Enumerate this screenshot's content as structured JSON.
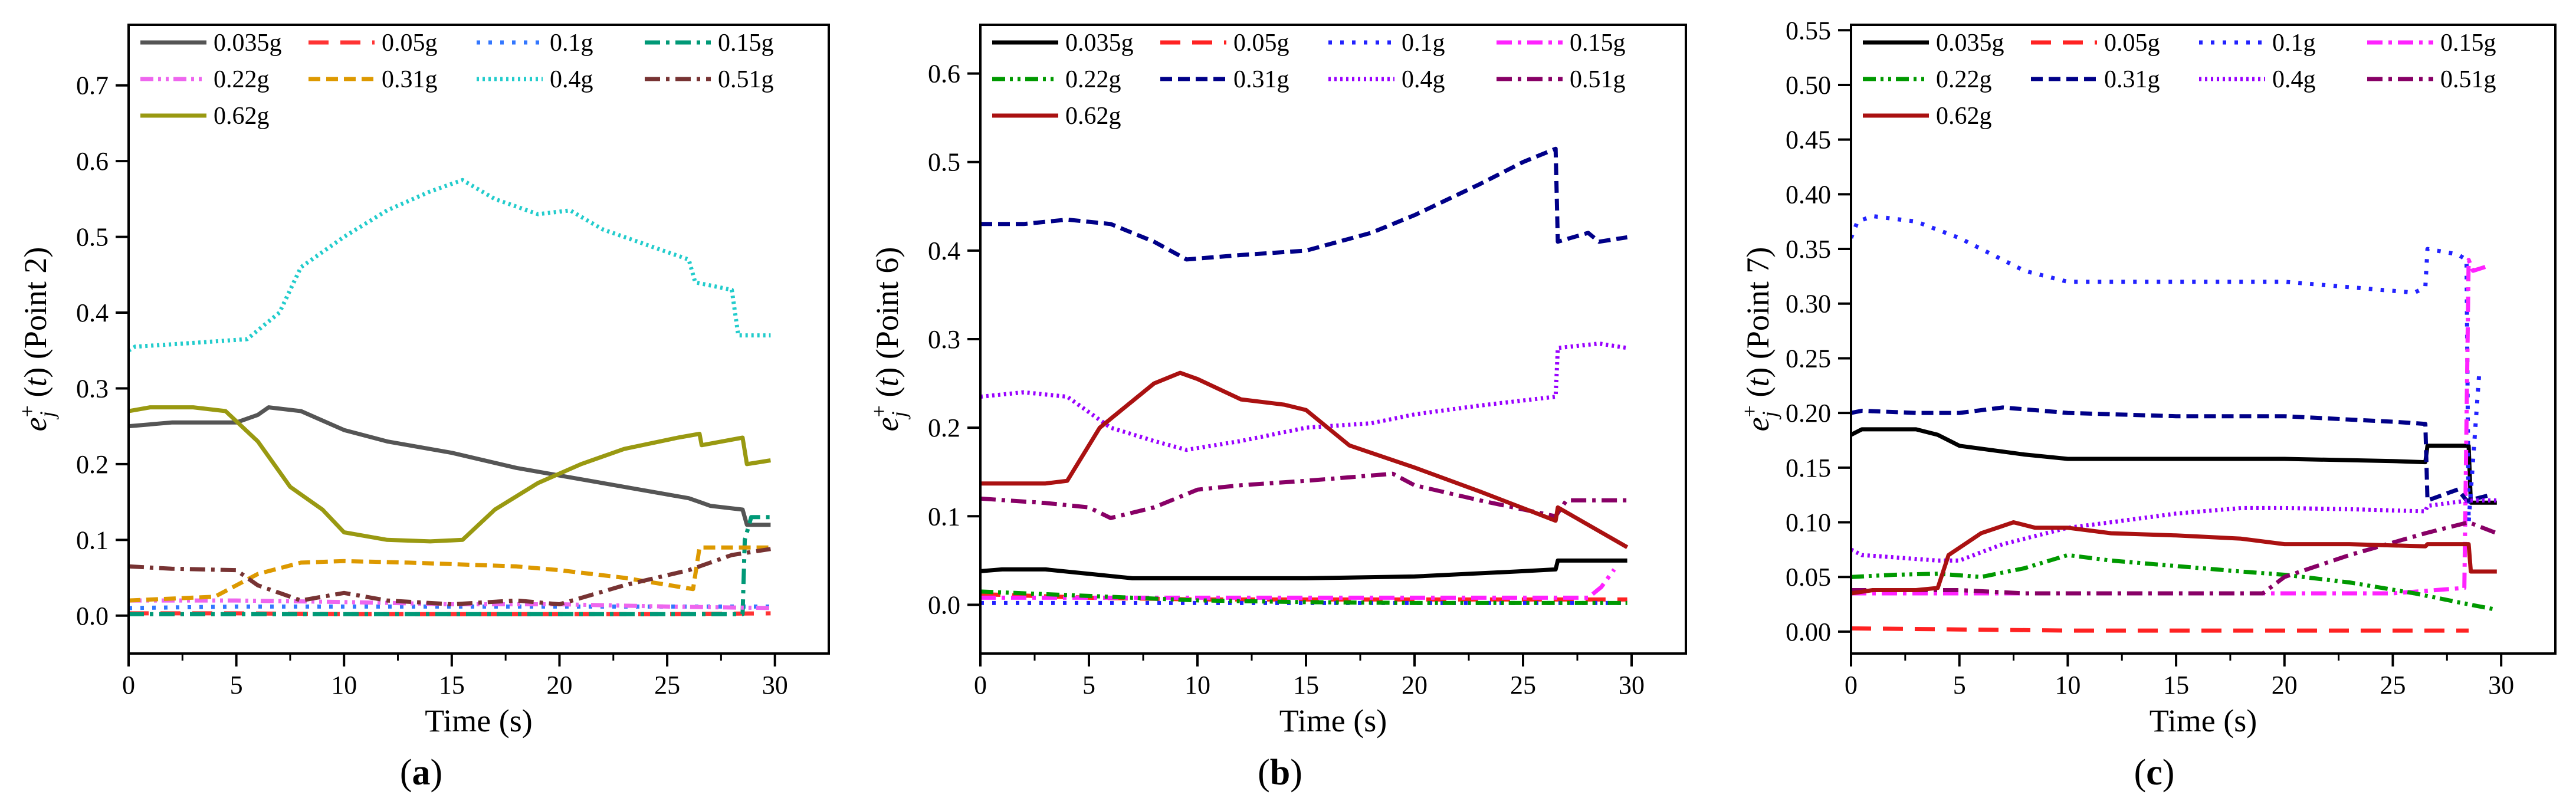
{
  "chart_data": [
    {
      "panel": "(a)",
      "panel_letter": "a",
      "type": "line",
      "xlabel": "Time (s)",
      "ylabel": "e_j^+ (t) (Point 2)",
      "ylabel_point": "(Point 2)",
      "xlim": [
        0,
        32.5
      ],
      "ylim": [
        -0.05,
        0.78
      ],
      "xticks": [
        0,
        5,
        10,
        15,
        20,
        25,
        30
      ],
      "yticks": [
        0.0,
        0.1,
        0.2,
        0.3,
        0.4,
        0.5,
        0.6,
        0.7
      ],
      "ytick_labels": [
        "0.0",
        "0.1",
        "0.2",
        "0.3",
        "0.4",
        "0.5",
        "0.6",
        "0.7"
      ],
      "legend": "top-left",
      "series": [
        {
          "name": "0.035g",
          "color": "#555555",
          "dash": "solid",
          "x": [
            0,
            2,
            5,
            6,
            6.5,
            8,
            10,
            12,
            15,
            18,
            20,
            23,
            26,
            26.5,
            27,
            28.5,
            28.7,
            29.8
          ],
          "y": [
            0.25,
            0.255,
            0.255,
            0.265,
            0.275,
            0.27,
            0.245,
            0.23,
            0.215,
            0.195,
            0.185,
            0.17,
            0.155,
            0.15,
            0.145,
            0.14,
            0.12,
            0.12
          ]
        },
        {
          "name": "0.05g",
          "color": "#ff3333",
          "dash": "long",
          "x": [
            0,
            5,
            10,
            15,
            20,
            25,
            29.8
          ],
          "y": [
            0.003,
            0.003,
            0.002,
            0.002,
            0.002,
            0.002,
            0.003
          ]
        },
        {
          "name": "0.1g",
          "color": "#3377ff",
          "dash": "dot",
          "x": [
            0,
            5,
            10,
            15,
            20,
            25,
            29.8
          ],
          "y": [
            0.01,
            0.012,
            0.012,
            0.012,
            0.012,
            0.012,
            0.012
          ]
        },
        {
          "name": "0.15g",
          "color": "#009977",
          "dash": "dashdot",
          "x": [
            0,
            5,
            10,
            15,
            20,
            25,
            28.5,
            28.6,
            28.9,
            29.8
          ],
          "y": [
            0.002,
            0.002,
            0.002,
            0.002,
            0.002,
            0.002,
            0.002,
            0.1,
            0.13,
            0.13
          ]
        },
        {
          "name": "0.22g",
          "color": "#ee66ee",
          "dash": "dashdotdot",
          "x": [
            0,
            5,
            10,
            15,
            20,
            25,
            29.8
          ],
          "y": [
            0.02,
            0.02,
            0.018,
            0.015,
            0.015,
            0.012,
            0.01
          ]
        },
        {
          "name": "0.31g",
          "color": "#dd9900",
          "dash": "dash",
          "x": [
            0,
            4,
            6,
            8,
            10,
            13,
            15,
            18,
            20,
            23,
            26.2,
            26.5,
            28,
            29.8
          ],
          "y": [
            0.02,
            0.025,
            0.055,
            0.07,
            0.072,
            0.07,
            0.068,
            0.065,
            0.06,
            0.05,
            0.035,
            0.09,
            0.09,
            0.09
          ]
        },
        {
          "name": "0.4g",
          "color": "#22cccc",
          "dash": "densedot",
          "x": [
            0,
            0.3,
            3,
            5.5,
            7,
            8,
            10,
            12,
            14,
            15.5,
            17,
            19,
            20.5,
            22,
            24,
            26,
            26.3,
            28,
            28.3,
            29.8
          ],
          "y": [
            0.35,
            0.355,
            0.36,
            0.365,
            0.4,
            0.46,
            0.5,
            0.535,
            0.56,
            0.575,
            0.55,
            0.53,
            0.535,
            0.51,
            0.49,
            0.47,
            0.44,
            0.43,
            0.37,
            0.37
          ]
        },
        {
          "name": "0.51g",
          "color": "#773333",
          "dash": "dashdot",
          "x": [
            0,
            2,
            5,
            6,
            8,
            10,
            12,
            15,
            18,
            20,
            23,
            26,
            28,
            29.8
          ],
          "y": [
            0.065,
            0.062,
            0.06,
            0.04,
            0.02,
            0.03,
            0.02,
            0.015,
            0.02,
            0.015,
            0.04,
            0.06,
            0.08,
            0.088
          ]
        },
        {
          "name": "0.62g",
          "color": "#999911",
          "dash": "solid",
          "x": [
            0,
            1,
            3,
            4.5,
            6,
            7.5,
            9,
            10,
            12,
            14,
            15.5,
            17,
            19,
            21,
            23,
            25.5,
            26.5,
            26.6,
            28.5,
            28.7,
            29.8
          ],
          "y": [
            0.27,
            0.275,
            0.275,
            0.27,
            0.23,
            0.17,
            0.14,
            0.11,
            0.1,
            0.098,
            0.1,
            0.14,
            0.175,
            0.2,
            0.22,
            0.235,
            0.24,
            0.225,
            0.235,
            0.2,
            0.205
          ]
        }
      ]
    },
    {
      "panel": "(b)",
      "panel_letter": "b",
      "type": "line",
      "xlabel": "Time (s)",
      "ylabel": "e_j^+ (t) (Point 6)",
      "ylabel_point": "(Point 6)",
      "xlim": [
        0,
        32.5
      ],
      "ylim": [
        -0.055,
        0.655
      ],
      "xticks": [
        0,
        5,
        10,
        15,
        20,
        25,
        30
      ],
      "yticks": [
        0.0,
        0.1,
        0.2,
        0.3,
        0.4,
        0.5,
        0.6
      ],
      "ytick_labels": [
        "0.0",
        "0.1",
        "0.2",
        "0.3",
        "0.4",
        "0.5",
        "0.6"
      ],
      "legend": "top-left",
      "series": [
        {
          "name": "0.035g",
          "color": "#000000",
          "dash": "solid",
          "x": [
            0,
            1,
            3,
            5,
            7,
            10,
            15,
            20,
            25,
            26.5,
            26.6,
            29.8
          ],
          "y": [
            0.038,
            0.04,
            0.04,
            0.035,
            0.03,
            0.03,
            0.03,
            0.032,
            0.038,
            0.04,
            0.05,
            0.05
          ]
        },
        {
          "name": "0.05g",
          "color": "#ff2222",
          "dash": "long",
          "x": [
            0,
            5,
            10,
            15,
            20,
            25,
            29.8
          ],
          "y": [
            0.012,
            0.008,
            0.006,
            0.006,
            0.006,
            0.006,
            0.006
          ]
        },
        {
          "name": "0.1g",
          "color": "#2222ff",
          "dash": "dot",
          "x": [
            0,
            5,
            10,
            15,
            20,
            25,
            29.8
          ],
          "y": [
            0.002,
            0.002,
            0.002,
            0.002,
            0.002,
            0.002,
            0.002
          ]
        },
        {
          "name": "0.15g",
          "color": "#ff22ff",
          "dash": "dashdot",
          "x": [
            0,
            5,
            10,
            15,
            20,
            25,
            28,
            28.6,
            29.2
          ],
          "y": [
            0.008,
            0.008,
            0.008,
            0.008,
            0.008,
            0.008,
            0.008,
            0.02,
            0.04
          ]
        },
        {
          "name": "0.22g",
          "color": "#009900",
          "dash": "dashdotdot",
          "x": [
            0,
            5,
            10,
            15,
            20,
            25,
            29.8
          ],
          "y": [
            0.015,
            0.01,
            0.005,
            0.003,
            0.002,
            0.002,
            0.002
          ]
        },
        {
          "name": "0.31g",
          "color": "#000088",
          "dash": "dash",
          "x": [
            0,
            2,
            4,
            6,
            8,
            9.5,
            12,
            15,
            18,
            20,
            23,
            25,
            26.5,
            26.6,
            28,
            28.5,
            29.8
          ],
          "y": [
            0.43,
            0.43,
            0.435,
            0.43,
            0.41,
            0.39,
            0.395,
            0.4,
            0.42,
            0.44,
            0.475,
            0.5,
            0.515,
            0.41,
            0.42,
            0.41,
            0.415
          ]
        },
        {
          "name": "0.4g",
          "color": "#9900ff",
          "dash": "densedot",
          "x": [
            0,
            2,
            4,
            6,
            8,
            9.5,
            12,
            15,
            18,
            20,
            23,
            26.5,
            26.6,
            28.5,
            29.8
          ],
          "y": [
            0.235,
            0.24,
            0.235,
            0.2,
            0.185,
            0.175,
            0.185,
            0.2,
            0.205,
            0.215,
            0.225,
            0.235,
            0.29,
            0.295,
            0.29
          ]
        },
        {
          "name": "0.51g",
          "color": "#880066",
          "dash": "dashdot",
          "x": [
            0,
            3,
            5,
            6,
            8,
            10,
            12,
            15,
            19,
            20,
            23,
            26.5,
            27,
            29.8
          ],
          "y": [
            0.12,
            0.115,
            0.11,
            0.098,
            0.11,
            0.13,
            0.135,
            0.14,
            0.148,
            0.135,
            0.118,
            0.1,
            0.118,
            0.118
          ]
        },
        {
          "name": "0.62g",
          "color": "#aa1111",
          "dash": "solid",
          "x": [
            0,
            3,
            4,
            5.5,
            7,
            8,
            9.2,
            10,
            12,
            14,
            15,
            17,
            20,
            23,
            26.5,
            26.6,
            29.8
          ],
          "y": [
            0.137,
            0.137,
            0.14,
            0.2,
            0.23,
            0.25,
            0.262,
            0.255,
            0.232,
            0.226,
            0.22,
            0.18,
            0.155,
            0.128,
            0.095,
            0.11,
            0.065
          ]
        }
      ]
    },
    {
      "panel": "(c)",
      "panel_letter": "c",
      "type": "line",
      "xlabel": "Time (s)",
      "ylabel": "e_j^+ (t) (Point 7)",
      "ylabel_point": "(Point 7)",
      "xlim": [
        0,
        32.5
      ],
      "ylim": [
        -0.02,
        0.555
      ],
      "xticks": [
        0,
        5,
        10,
        15,
        20,
        25,
        30
      ],
      "yticks": [
        0.0,
        0.05,
        0.1,
        0.15,
        0.2,
        0.25,
        0.3,
        0.35,
        0.4,
        0.45,
        0.5,
        0.55
      ],
      "ytick_labels": [
        "0.00",
        "0.05",
        "0.10",
        "0.15",
        "0.20",
        "0.25",
        "0.30",
        "0.35",
        "0.40",
        "0.45",
        "0.50",
        "0.55"
      ],
      "legend": "top-left",
      "series": [
        {
          "name": "0.035g",
          "color": "#000000",
          "dash": "solid",
          "x": [
            0,
            0.5,
            3,
            4,
            5,
            8,
            10,
            15,
            20,
            25,
            26.5,
            26.6,
            28.5,
            28.6,
            29.8
          ],
          "y": [
            0.18,
            0.185,
            0.185,
            0.18,
            0.17,
            0.162,
            0.158,
            0.158,
            0.158,
            0.156,
            0.155,
            0.17,
            0.17,
            0.118,
            0.118
          ]
        },
        {
          "name": "0.05g",
          "color": "#ff2222",
          "dash": "long",
          "x": [
            0,
            5,
            10,
            15,
            20,
            25,
            28.5
          ],
          "y": [
            0.003,
            0.002,
            0.001,
            0.001,
            0.001,
            0.001,
            0.001
          ]
        },
        {
          "name": "0.1g",
          "color": "#2222ff",
          "dash": "dot",
          "x": [
            0,
            0.3,
            1,
            3,
            5,
            8,
            10,
            12,
            15,
            20,
            23,
            26,
            26.5,
            26.6,
            28,
            28.4,
            28.5,
            29
          ],
          "y": [
            0.36,
            0.375,
            0.38,
            0.375,
            0.36,
            0.33,
            0.32,
            0.32,
            0.32,
            0.32,
            0.315,
            0.31,
            0.315,
            0.35,
            0.345,
            0.34,
            0.1,
            0.24
          ]
        },
        {
          "name": "0.15g",
          "color": "#ff22ff",
          "dash": "dashdot",
          "x": [
            0,
            5,
            10,
            15,
            20,
            25,
            28.3,
            28.5,
            28.7,
            29.5
          ],
          "y": [
            0.035,
            0.035,
            0.035,
            0.035,
            0.035,
            0.035,
            0.04,
            0.34,
            0.33,
            0.335
          ]
        },
        {
          "name": "0.22g",
          "color": "#009900",
          "dash": "dashdotdot",
          "x": [
            0,
            2,
            4,
            6,
            8,
            10,
            12,
            15,
            18,
            20,
            23,
            26,
            28.5,
            29.8
          ],
          "y": [
            0.05,
            0.052,
            0.053,
            0.05,
            0.058,
            0.07,
            0.065,
            0.06,
            0.055,
            0.052,
            0.045,
            0.035,
            0.025,
            0.02
          ]
        },
        {
          "name": "0.31g",
          "color": "#000088",
          "dash": "dash",
          "x": [
            0,
            0.5,
            3,
            5,
            7,
            10,
            15,
            20,
            25,
            26.5,
            26.6,
            28,
            28.4,
            28.5,
            29.5
          ],
          "y": [
            0.2,
            0.202,
            0.2,
            0.2,
            0.205,
            0.2,
            0.197,
            0.197,
            0.192,
            0.19,
            0.12,
            0.13,
            0.12,
            0.12,
            0.125
          ]
        },
        {
          "name": "0.4g",
          "color": "#9900ff",
          "dash": "densedot",
          "x": [
            0,
            0.5,
            2,
            4,
            5,
            7,
            10,
            12,
            15,
            18,
            20,
            23,
            26.5,
            26.6,
            28.5,
            29.8
          ],
          "y": [
            0.075,
            0.07,
            0.068,
            0.065,
            0.065,
            0.08,
            0.095,
            0.1,
            0.108,
            0.113,
            0.113,
            0.112,
            0.11,
            0.115,
            0.12,
            0.12
          ]
        },
        {
          "name": "0.51g",
          "color": "#880066",
          "dash": "dashdot",
          "x": [
            0,
            2,
            5,
            8,
            10,
            12,
            15,
            19,
            20,
            23,
            26.5,
            28.5,
            29.8
          ],
          "y": [
            0.038,
            0.038,
            0.038,
            0.035,
            0.035,
            0.035,
            0.035,
            0.035,
            0.05,
            0.07,
            0.09,
            0.1,
            0.09
          ]
        },
        {
          "name": "0.62g",
          "color": "#aa1111",
          "dash": "solid",
          "x": [
            0,
            1,
            3,
            4,
            4.5,
            6,
            7.5,
            8.5,
            10,
            12,
            15,
            18,
            20,
            23,
            26.5,
            26.6,
            28.5,
            28.6,
            29.8
          ],
          "y": [
            0.035,
            0.038,
            0.038,
            0.04,
            0.07,
            0.09,
            0.1,
            0.095,
            0.095,
            0.09,
            0.088,
            0.085,
            0.08,
            0.08,
            0.078,
            0.08,
            0.08,
            0.055,
            0.055
          ]
        }
      ]
    }
  ]
}
